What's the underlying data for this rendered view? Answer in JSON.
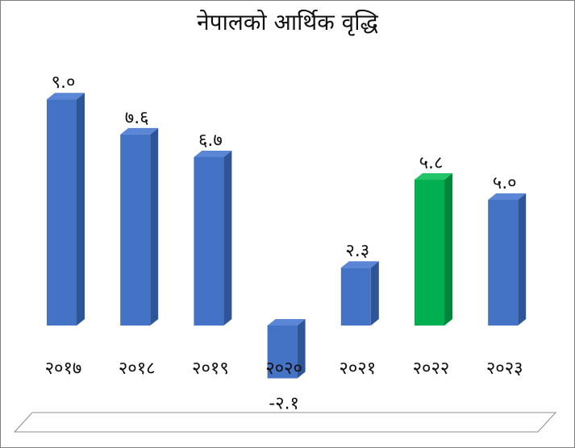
{
  "chart_data": {
    "type": "bar",
    "title": "नेपालको आर्थिक वृद्धि",
    "xlabel": "",
    "ylabel": "",
    "categories": [
      "२०१७",
      "२०१८",
      "२०१९",
      "२०२०",
      "२०२१",
      "२०२२",
      "२०२३"
    ],
    "values": [
      9.0,
      7.6,
      6.7,
      -2.1,
      2.3,
      5.8,
      5.0
    ],
    "value_labels": [
      "९.०",
      "७.६",
      "६.७",
      "-२.१",
      "२.३",
      "५.८",
      "५.०"
    ],
    "highlight_category": "२०२२",
    "ylim": [
      -2.1,
      9.0
    ],
    "grid": false,
    "legend": "none",
    "style": "3d-column"
  },
  "colors": {
    "bar_front": "#4472c4",
    "bar_side": "#2f5597",
    "bar_top": "#5b86d6",
    "highlight_front": "#00b050",
    "highlight_side": "#00873c",
    "highlight_top": "#21c466",
    "floor": "#ffffff",
    "floor_edge": "#8c8c8c"
  }
}
